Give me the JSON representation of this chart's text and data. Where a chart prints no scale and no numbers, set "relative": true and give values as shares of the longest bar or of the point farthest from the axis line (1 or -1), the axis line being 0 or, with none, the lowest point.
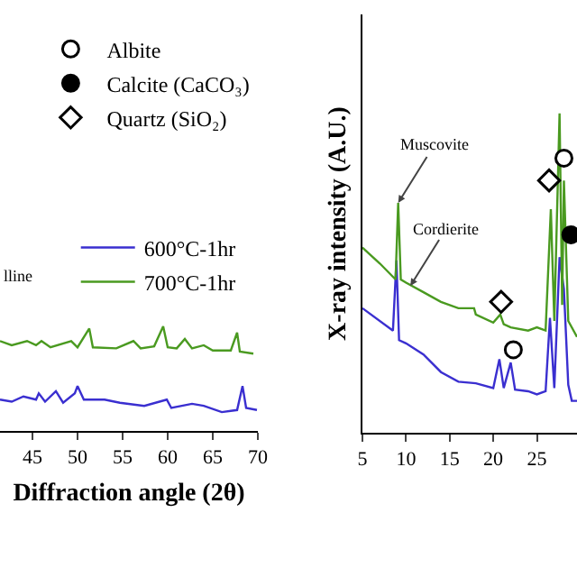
{
  "chart_data": [
    {
      "type": "line",
      "relative": true,
      "xlabel": "Diffraction angle (2θ)",
      "xlim": [
        41.4,
        70
      ],
      "xticks": [
        45,
        50,
        55,
        60,
        65,
        70
      ],
      "legend": "top right",
      "grid": false,
      "annotations": [
        "lline"
      ],
      "series": [
        {
          "name": "600°C-1hr",
          "color": "#3a2fd0",
          "x": [
            41.4,
            42.7,
            44,
            45.4,
            45.7,
            46.4,
            47.6,
            48.4,
            49.7,
            50,
            50.7,
            52,
            53,
            54.7,
            57.4,
            59.9,
            60.4,
            62.7,
            64,
            66,
            67.7,
            68.3,
            68.7,
            69.9
          ],
          "values": [
            0.3,
            0.28,
            0.33,
            0.3,
            0.36,
            0.28,
            0.38,
            0.27,
            0.36,
            0.43,
            0.3,
            0.3,
            0.3,
            0.27,
            0.24,
            0.3,
            0.22,
            0.26,
            0.24,
            0.18,
            0.2,
            0.43,
            0.22,
            0.2
          ]
        },
        {
          "name": "700°C-1hr",
          "color": "#4a9a20",
          "x": [
            41.4,
            42.7,
            44.4,
            45.4,
            46,
            47,
            49.3,
            50,
            51.3,
            51.7,
            54.3,
            56.2,
            57,
            58.5,
            59.5,
            60,
            61,
            61.9,
            62.7,
            64,
            65,
            67,
            67.7,
            68,
            69.5
          ],
          "values": [
            0.86,
            0.82,
            0.86,
            0.82,
            0.86,
            0.8,
            0.86,
            0.8,
            0.98,
            0.8,
            0.79,
            0.86,
            0.79,
            0.81,
            1.0,
            0.8,
            0.79,
            0.88,
            0.79,
            0.82,
            0.77,
            0.77,
            0.94,
            0.76,
            0.74
          ]
        }
      ]
    },
    {
      "type": "line",
      "relative": true,
      "ylabel": "X-ray intensity (A.U.)",
      "xlim": [
        5,
        29.6
      ],
      "xticks": [
        5,
        10,
        15,
        20,
        25
      ],
      "legend": "top left",
      "grid": false,
      "annotations": [
        {
          "text": "Muscovite",
          "x": 9.1,
          "y": 0.72
        },
        {
          "text": "Cordierite",
          "x": 10.5,
          "y": 0.46
        }
      ],
      "series": [
        {
          "color": "#3a2fd0",
          "x": [
            5,
            8.5,
            8.9,
            9.2,
            10,
            12,
            14,
            16,
            18,
            20,
            20.7,
            21.2,
            22,
            22.5,
            24,
            25,
            26,
            26.5,
            27,
            27.6,
            28.1,
            28.6,
            29,
            29.6
          ],
          "values": [
            0.39,
            0.32,
            0.54,
            0.29,
            0.28,
            0.245,
            0.19,
            0.16,
            0.155,
            0.14,
            0.23,
            0.14,
            0.22,
            0.135,
            0.13,
            0.12,
            0.13,
            0.36,
            0.14,
            0.55,
            0.45,
            0.15,
            0.1,
            0.1
          ]
        },
        {
          "color": "#4a9a20",
          "x": [
            5,
            7,
            8.8,
            9.1,
            9.4,
            10,
            12,
            14,
            16,
            17.8,
            18,
            20,
            20.8,
            21.2,
            22,
            24,
            25,
            26,
            26.6,
            27,
            27.6,
            27.9,
            28.1,
            28.6,
            29.6
          ],
          "values": [
            0.58,
            0.53,
            0.48,
            0.72,
            0.48,
            0.47,
            0.44,
            0.41,
            0.39,
            0.39,
            0.37,
            0.345,
            0.37,
            0.34,
            0.33,
            0.32,
            0.33,
            0.32,
            0.7,
            0.35,
            1.0,
            0.4,
            0.79,
            0.35,
            0.3
          ]
        },
        {
          "type": "scatter",
          "name": "Albite",
          "marker": "circle",
          "color": "#ffffff",
          "x": [
            22.3,
            28.1
          ],
          "values": [
            0.26,
            0.86
          ]
        },
        {
          "type": "scatter",
          "name": "Calcite (CaCO₃)",
          "marker": "circle",
          "color": "#000000",
          "x": [
            28.9
          ],
          "values": [
            0.62
          ]
        },
        {
          "type": "scatter",
          "name": "Quartz (SiO₂)",
          "marker": "diamond",
          "color": "#ffffff",
          "x": [
            20.9,
            26.4
          ],
          "values": [
            0.41,
            0.79
          ]
        }
      ]
    }
  ]
}
